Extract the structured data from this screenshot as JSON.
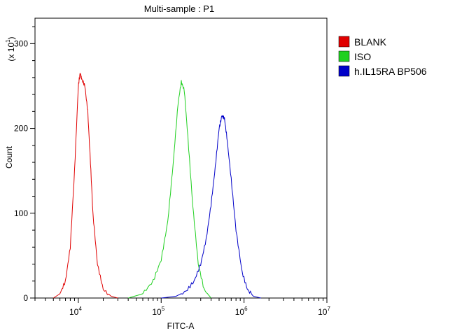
{
  "chart_data": {
    "type": "line",
    "title": "Multi-sample : P1",
    "xlabel": "FITC-A",
    "ylabel": "Count",
    "y_multiplier": {
      "text": "(x 10",
      "exp": "1",
      "close": ")"
    },
    "x_scale": "log",
    "xlim": [
      3000,
      10000000
    ],
    "ylim": [
      0,
      330
    ],
    "x_ticks": [
      {
        "value": 10000,
        "base": "10",
        "exp": "4"
      },
      {
        "value": 100000,
        "base": "10",
        "exp": "5"
      },
      {
        "value": 1000000,
        "base": "10",
        "exp": "6"
      },
      {
        "value": 10000000,
        "base": "10",
        "exp": "7"
      }
    ],
    "y_ticks": [
      0,
      100,
      200,
      300
    ],
    "legend_position": "right",
    "series": [
      {
        "name": "BLANK",
        "color": "#e00000",
        "x": [
          5000,
          6000,
          7000,
          8000,
          9000,
          10000,
          10500,
          11000,
          12000,
          13000,
          14000,
          15000,
          17000,
          20000,
          25000,
          30000
        ],
        "y": [
          0,
          5,
          20,
          60,
          150,
          250,
          265,
          258,
          250,
          220,
          160,
          100,
          40,
          10,
          2,
          0
        ]
      },
      {
        "name": "ISO",
        "color": "#20d020",
        "x": [
          40000,
          60000,
          80000,
          100000,
          120000,
          140000,
          160000,
          175000,
          190000,
          210000,
          240000,
          280000,
          330000,
          400000
        ],
        "y": [
          0,
          5,
          20,
          45,
          90,
          160,
          230,
          255,
          245,
          190,
          110,
          40,
          10,
          0
        ]
      },
      {
        "name": "h.IL15RA BP506",
        "color": "#0000c8",
        "x": [
          100000,
          150000,
          200000,
          250000,
          300000,
          350000,
          400000,
          450000,
          500000,
          540000,
          580000,
          620000,
          700000,
          800000,
          950000,
          1100000,
          1300000,
          1600000
        ],
        "y": [
          0,
          2,
          8,
          20,
          40,
          70,
          110,
          155,
          200,
          215,
          212,
          190,
          140,
          80,
          30,
          10,
          2,
          0
        ]
      }
    ]
  }
}
